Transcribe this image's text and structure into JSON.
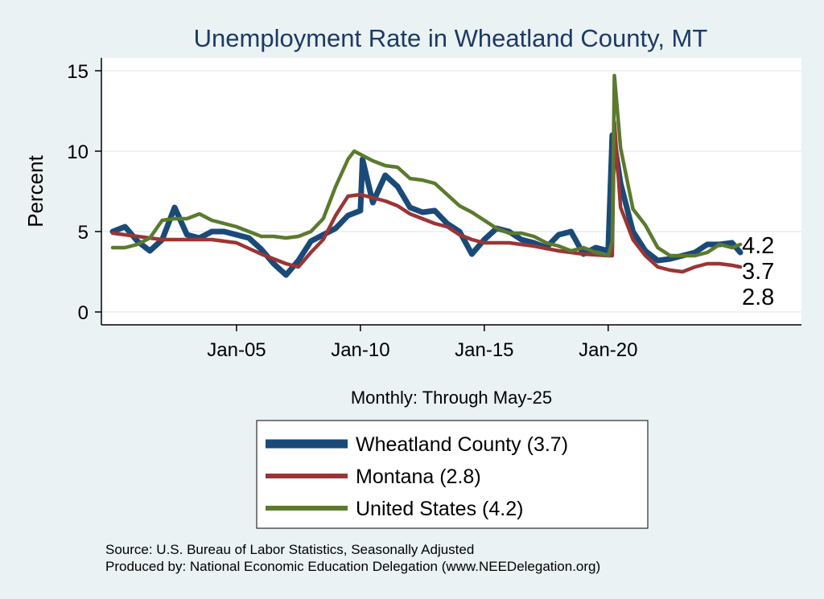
{
  "chart_data": {
    "type": "line",
    "title": "Unemployment Rate in Wheatland  County, MT",
    "ylabel": "Percent",
    "xnote": "Monthly: Through May-25",
    "ylim": [
      0,
      15
    ],
    "yticks": [
      0,
      5,
      10,
      15
    ],
    "xticks": [
      {
        "label": "Jan-05",
        "year": 2005
      },
      {
        "label": "Jan-10",
        "year": 2010
      },
      {
        "label": "Jan-15",
        "year": 2015
      },
      {
        "label": "Jan-20",
        "year": 2020
      }
    ],
    "xrange": [
      "Jan-00",
      "May-25"
    ],
    "grid": true,
    "legend_position": "bottom",
    "series": [
      {
        "name": "Wheatland  County (3.7)",
        "color": "#1a4a78",
        "end_label": "3.7",
        "points": [
          [
            "Jan-00",
            5.0
          ],
          [
            "Jul-00",
            5.3
          ],
          [
            "Jan-01",
            4.4
          ],
          [
            "Jul-01",
            3.8
          ],
          [
            "Jan-02",
            4.5
          ],
          [
            "Jul-02",
            6.5
          ],
          [
            "Jan-03",
            4.8
          ],
          [
            "Jul-03",
            4.6
          ],
          [
            "Jan-04",
            5.0
          ],
          [
            "Jul-04",
            5.0
          ],
          [
            "Jan-05",
            4.8
          ],
          [
            "Jul-05",
            4.6
          ],
          [
            "Jan-06",
            3.9
          ],
          [
            "Jul-06",
            3.0
          ],
          [
            "Jan-07",
            2.3
          ],
          [
            "Jul-07",
            3.2
          ],
          [
            "Jan-08",
            4.4
          ],
          [
            "Jul-08",
            4.8
          ],
          [
            "Jan-09",
            5.2
          ],
          [
            "Jul-09",
            6.0
          ],
          [
            "Jan-10",
            6.3
          ],
          [
            "Feb-10",
            9.5
          ],
          [
            "Jul-10",
            6.8
          ],
          [
            "Jan-11",
            8.5
          ],
          [
            "Jul-11",
            7.8
          ],
          [
            "Jan-12",
            6.5
          ],
          [
            "Jul-12",
            6.2
          ],
          [
            "Jan-13",
            6.3
          ],
          [
            "Jul-13",
            5.5
          ],
          [
            "Jan-14",
            5.0
          ],
          [
            "Jul-14",
            3.6
          ],
          [
            "Jan-15",
            4.5
          ],
          [
            "Jul-15",
            5.2
          ],
          [
            "Jan-16",
            5.0
          ],
          [
            "Jul-16",
            4.5
          ],
          [
            "Jan-17",
            4.3
          ],
          [
            "Jul-17",
            4.0
          ],
          [
            "Jan-18",
            4.8
          ],
          [
            "Jul-18",
            5.0
          ],
          [
            "Jan-19",
            3.6
          ],
          [
            "Jul-19",
            4.0
          ],
          [
            "Jan-20",
            3.8
          ],
          [
            "Mar-20",
            11.0
          ],
          [
            "Apr-20",
            10.5
          ],
          [
            "Jul-20",
            8.0
          ],
          [
            "Jan-21",
            5.0
          ],
          [
            "Jul-21",
            3.8
          ],
          [
            "Jan-22",
            3.2
          ],
          [
            "Jul-22",
            3.3
          ],
          [
            "Jan-23",
            3.5
          ],
          [
            "Jul-23",
            3.7
          ],
          [
            "Jan-24",
            4.2
          ],
          [
            "Jul-24",
            4.2
          ],
          [
            "Jan-25",
            4.3
          ],
          [
            "May-25",
            3.7
          ]
        ]
      },
      {
        "name": "Montana (2.8)",
        "color": "#9b3535",
        "end_label": "2.8",
        "points": [
          [
            "Jan-00",
            4.9
          ],
          [
            "Jan-01",
            4.7
          ],
          [
            "Jan-02",
            4.5
          ],
          [
            "Jan-03",
            4.5
          ],
          [
            "Jan-04",
            4.5
          ],
          [
            "Jan-05",
            4.3
          ],
          [
            "Jan-06",
            3.6
          ],
          [
            "Jan-07",
            3.0
          ],
          [
            "Jul-07",
            2.8
          ],
          [
            "Jan-08",
            3.7
          ],
          [
            "Jul-08",
            4.5
          ],
          [
            "Jan-09",
            6.0
          ],
          [
            "Jul-09",
            7.2
          ],
          [
            "Jan-10",
            7.3
          ],
          [
            "Jul-10",
            7.1
          ],
          [
            "Jan-11",
            6.9
          ],
          [
            "Jul-11",
            6.6
          ],
          [
            "Jan-12",
            6.1
          ],
          [
            "Jul-12",
            5.8
          ],
          [
            "Jan-13",
            5.5
          ],
          [
            "Jul-13",
            5.3
          ],
          [
            "Jan-14",
            4.8
          ],
          [
            "Jul-14",
            4.5
          ],
          [
            "Jan-15",
            4.3
          ],
          [
            "Jan-16",
            4.3
          ],
          [
            "Jan-17",
            4.1
          ],
          [
            "Jan-18",
            3.8
          ],
          [
            "Jan-19",
            3.6
          ],
          [
            "Jan-20",
            3.5
          ],
          [
            "Mar-20",
            3.5
          ],
          [
            "Apr-20",
            11.8
          ],
          [
            "Jul-20",
            6.5
          ],
          [
            "Jan-21",
            4.5
          ],
          [
            "Jul-21",
            3.5
          ],
          [
            "Jan-22",
            2.8
          ],
          [
            "Jul-22",
            2.6
          ],
          [
            "Jan-23",
            2.5
          ],
          [
            "Jul-23",
            2.8
          ],
          [
            "Jan-24",
            3.0
          ],
          [
            "Jul-24",
            3.0
          ],
          [
            "Jan-25",
            2.9
          ],
          [
            "May-25",
            2.8
          ]
        ]
      },
      {
        "name": "United States (4.2)",
        "color": "#5b7a2e",
        "end_label": "4.2",
        "points": [
          [
            "Jan-00",
            4.0
          ],
          [
            "Jul-00",
            4.0
          ],
          [
            "Jan-01",
            4.2
          ],
          [
            "Jul-01",
            4.6
          ],
          [
            "Jan-02",
            5.7
          ],
          [
            "Jul-02",
            5.8
          ],
          [
            "Jan-03",
            5.8
          ],
          [
            "Jul-03",
            6.1
          ],
          [
            "Jan-04",
            5.7
          ],
          [
            "Jul-04",
            5.5
          ],
          [
            "Jan-05",
            5.3
          ],
          [
            "Jul-05",
            5.0
          ],
          [
            "Jan-06",
            4.7
          ],
          [
            "Jul-06",
            4.7
          ],
          [
            "Jan-07",
            4.6
          ],
          [
            "Jul-07",
            4.7
          ],
          [
            "Jan-08",
            5.0
          ],
          [
            "Jul-08",
            5.8
          ],
          [
            "Jan-09",
            7.8
          ],
          [
            "Jul-09",
            9.5
          ],
          [
            "Oct-09",
            10.0
          ],
          [
            "Jan-10",
            9.8
          ],
          [
            "Jul-10",
            9.4
          ],
          [
            "Jan-11",
            9.1
          ],
          [
            "Jul-11",
            9.0
          ],
          [
            "Jan-12",
            8.3
          ],
          [
            "Jul-12",
            8.2
          ],
          [
            "Jan-13",
            8.0
          ],
          [
            "Jul-13",
            7.3
          ],
          [
            "Jan-14",
            6.6
          ],
          [
            "Jul-14",
            6.2
          ],
          [
            "Jan-15",
            5.7
          ],
          [
            "Jul-15",
            5.2
          ],
          [
            "Jan-16",
            4.9
          ],
          [
            "Jul-16",
            4.9
          ],
          [
            "Jan-17",
            4.7
          ],
          [
            "Jul-17",
            4.3
          ],
          [
            "Jan-18",
            4.1
          ],
          [
            "Jul-18",
            3.8
          ],
          [
            "Jan-19",
            4.0
          ],
          [
            "Jul-19",
            3.7
          ],
          [
            "Jan-20",
            3.5
          ],
          [
            "Mar-20",
            4.4
          ],
          [
            "Apr-20",
            14.7
          ],
          [
            "May-20",
            13.2
          ],
          [
            "Jul-20",
            10.2
          ],
          [
            "Jan-21",
            6.4
          ],
          [
            "Jul-21",
            5.4
          ],
          [
            "Jan-22",
            4.0
          ],
          [
            "Jul-22",
            3.5
          ],
          [
            "Jan-23",
            3.5
          ],
          [
            "Jul-23",
            3.5
          ],
          [
            "Jan-24",
            3.7
          ],
          [
            "Jul-24",
            4.2
          ],
          [
            "Jan-25",
            4.0
          ],
          [
            "May-25",
            4.2
          ]
        ]
      }
    ]
  },
  "source_line": "Source: U.S. Bureau of Labor Statistics, Seasonally Adjusted",
  "produced_line": "Produced by: National Economic Education Delegation (www.NEEDelegation.org)"
}
